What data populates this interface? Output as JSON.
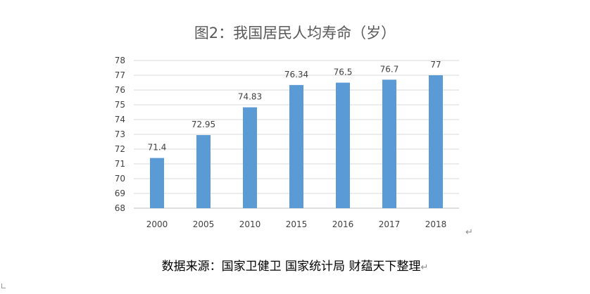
{
  "chart_data": {
    "type": "bar",
    "title": "图2：我国居民人均寿命（岁）",
    "categories": [
      "2000",
      "2005",
      "2010",
      "2015",
      "2016",
      "2017",
      "2018"
    ],
    "values": [
      71.4,
      72.95,
      74.83,
      76.34,
      76.5,
      76.7,
      77
    ],
    "data_labels": [
      "71.4",
      "72.95",
      "74.83",
      "76.34",
      "76.5",
      "76.7",
      "77"
    ],
    "ylim": [
      68,
      78
    ],
    "yticks": [
      "68",
      "69",
      "70",
      "71",
      "72",
      "73",
      "74",
      "75",
      "76",
      "77",
      "78"
    ],
    "xlabel": "",
    "ylabel": "",
    "grid": true,
    "bar_color": "#5b9bd5"
  },
  "source_text": "数据来源：国家卫健卫  国家统计局  财蕴天下整理",
  "paragraph_mark": "↵"
}
